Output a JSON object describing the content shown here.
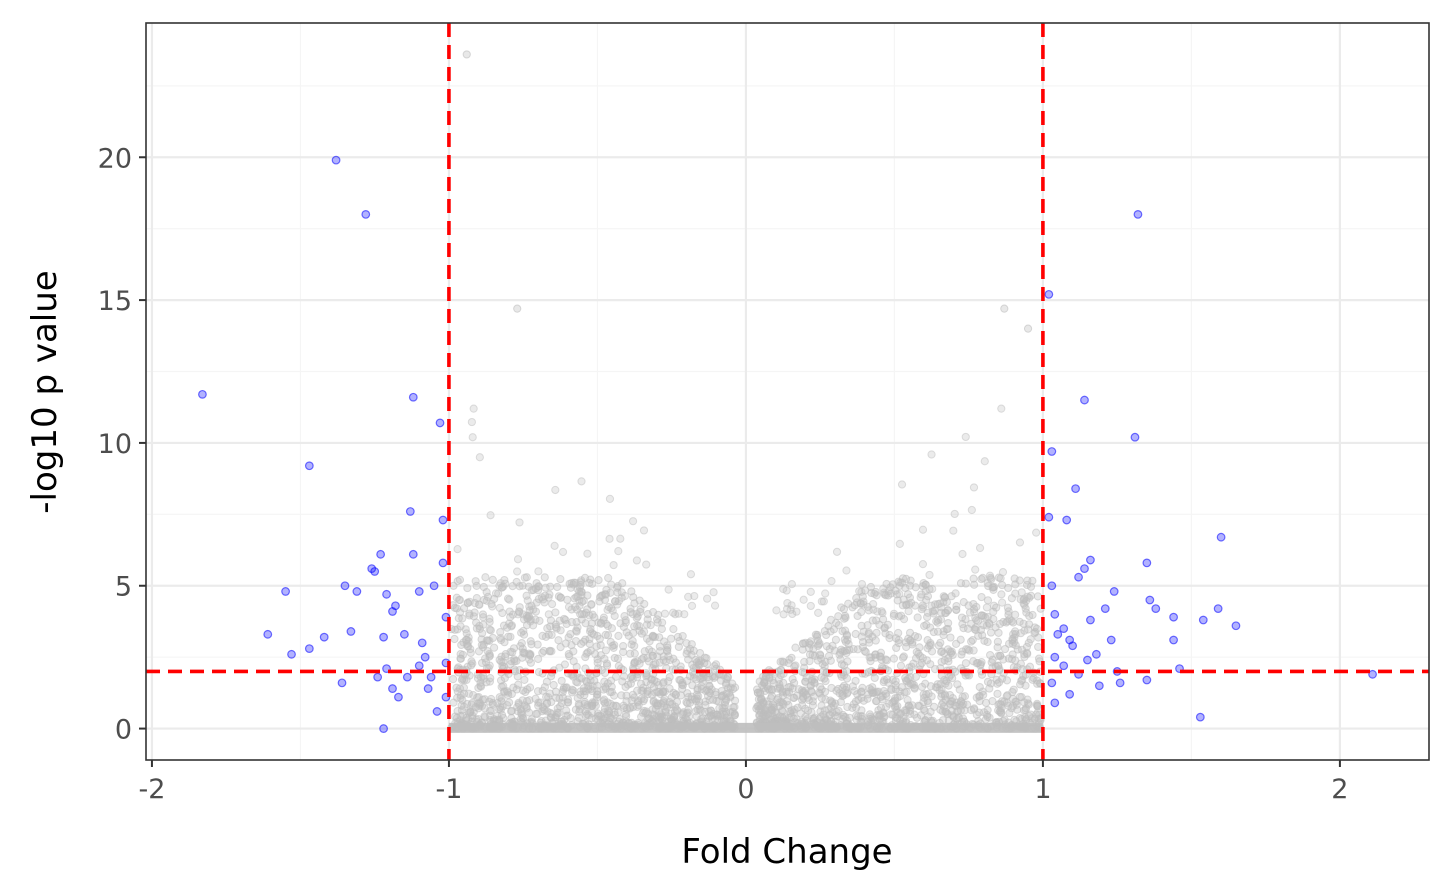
{
  "chart_data": {
    "type": "scatter",
    "title": "",
    "xlabel": "Fold Change",
    "ylabel": "-log10 p value",
    "xlim": [
      -2.02,
      2.3
    ],
    "ylim": [
      -1.1,
      24.7
    ],
    "x_ticks": [
      {
        "value": -2,
        "label": "-2"
      },
      {
        "value": -1,
        "label": "-1"
      },
      {
        "value": 0,
        "label": "0"
      },
      {
        "value": 1,
        "label": "1"
      },
      {
        "value": 2,
        "label": "2"
      }
    ],
    "y_ticks": [
      {
        "value": 0,
        "label": "0"
      },
      {
        "value": 5,
        "label": "5"
      },
      {
        "value": 10,
        "label": "10"
      },
      {
        "value": 15,
        "label": "15"
      },
      {
        "value": 20,
        "label": "20"
      }
    ],
    "grid": true,
    "thresholds": {
      "fold_change": [
        -1,
        1
      ],
      "neg_log10_p": 2,
      "line_color": "#ff0000",
      "line_style": "dashed"
    },
    "colors": {
      "significant": "#0000ff",
      "not_significant": "#bebebe",
      "panel_border": "#333333",
      "grid_major": "#ebebeb",
      "grid_minor": "#f5f5f5"
    },
    "series": [
      {
        "color": "#0000ff",
        "opacity": 0.3,
        "points": [
          [
            -1.83,
            11.7
          ],
          [
            -1.55,
            4.8
          ],
          [
            -1.61,
            3.3
          ],
          [
            -1.53,
            2.6
          ],
          [
            -1.47,
            9.2
          ],
          [
            -1.47,
            2.8
          ],
          [
            -1.42,
            3.2
          ],
          [
            -1.38,
            19.9
          ],
          [
            -1.35,
            5.0
          ],
          [
            -1.33,
            3.4
          ],
          [
            -1.31,
            4.8
          ],
          [
            -1.36,
            1.6
          ],
          [
            -1.28,
            18.0
          ],
          [
            -1.26,
            5.6
          ],
          [
            -1.25,
            5.5
          ],
          [
            -1.23,
            6.1
          ],
          [
            -1.22,
            3.2
          ],
          [
            -1.21,
            4.7
          ],
          [
            -1.19,
            4.1
          ],
          [
            -1.18,
            4.3
          ],
          [
            -1.21,
            2.1
          ],
          [
            -1.19,
            1.4
          ],
          [
            -1.17,
            1.1
          ],
          [
            -1.22,
            0.0
          ],
          [
            -1.15,
            3.3
          ],
          [
            -1.13,
            7.6
          ],
          [
            -1.12,
            11.6
          ],
          [
            -1.12,
            6.1
          ],
          [
            -1.1,
            4.8
          ],
          [
            -1.09,
            3.0
          ],
          [
            -1.08,
            2.5
          ],
          [
            -1.07,
            1.4
          ],
          [
            -1.05,
            5.0
          ],
          [
            -1.03,
            10.7
          ],
          [
            -1.02,
            7.3
          ],
          [
            -1.02,
            5.8
          ],
          [
            -1.01,
            3.9
          ],
          [
            -1.01,
            2.3
          ],
          [
            -1.01,
            1.1
          ],
          [
            -1.04,
            0.6
          ],
          [
            -1.24,
            1.8
          ],
          [
            -1.14,
            1.8
          ],
          [
            -1.1,
            2.2
          ],
          [
            -1.06,
            1.8
          ],
          [
            1.02,
            15.2
          ],
          [
            1.03,
            9.7
          ],
          [
            1.02,
            7.4
          ],
          [
            1.03,
            5.0
          ],
          [
            1.04,
            4.0
          ],
          [
            1.05,
            3.3
          ],
          [
            1.04,
            2.5
          ],
          [
            1.03,
            1.6
          ],
          [
            1.04,
            0.9
          ],
          [
            1.08,
            7.3
          ],
          [
            1.07,
            3.5
          ],
          [
            1.07,
            2.2
          ],
          [
            1.09,
            1.2
          ],
          [
            1.11,
            8.4
          ],
          [
            1.12,
            5.3
          ],
          [
            1.14,
            11.5
          ],
          [
            1.14,
            5.6
          ],
          [
            1.16,
            5.9
          ],
          [
            1.16,
            3.8
          ],
          [
            1.18,
            2.6
          ],
          [
            1.19,
            1.5
          ],
          [
            1.21,
            4.2
          ],
          [
            1.23,
            3.1
          ],
          [
            1.24,
            4.8
          ],
          [
            1.25,
            2.0
          ],
          [
            1.26,
            1.6
          ],
          [
            1.31,
            10.2
          ],
          [
            1.32,
            18.0
          ],
          [
            1.35,
            5.8
          ],
          [
            1.36,
            4.5
          ],
          [
            1.38,
            4.2
          ],
          [
            1.35,
            1.7
          ],
          [
            1.44,
            3.9
          ],
          [
            1.44,
            3.1
          ],
          [
            1.46,
            2.1
          ],
          [
            1.53,
            0.4
          ],
          [
            1.54,
            3.8
          ],
          [
            1.59,
            4.2
          ],
          [
            1.6,
            6.7
          ],
          [
            1.65,
            3.6
          ],
          [
            2.11,
            1.9
          ],
          [
            1.1,
            2.9
          ],
          [
            1.12,
            1.9
          ],
          [
            1.09,
            3.1
          ],
          [
            1.15,
            2.4
          ]
        ]
      }
    ]
  }
}
